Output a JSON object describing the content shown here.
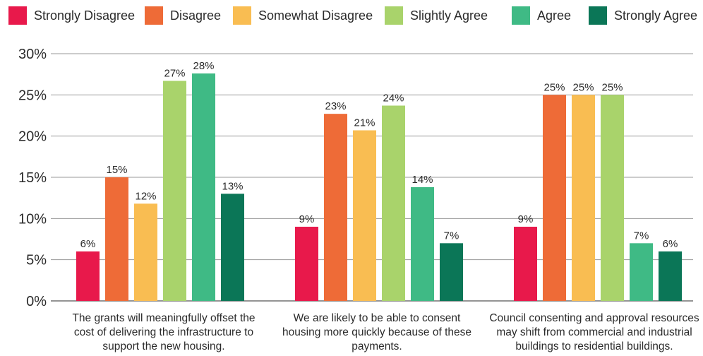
{
  "chart_data": {
    "type": "bar",
    "categories": [
      [
        "The grants will meaningfully offset the",
        "cost of delivering the infrastructure to",
        "support the new housing."
      ],
      [
        "We are likely to be able to consent",
        "housing more quickly because of these",
        "payments."
      ],
      [
        "Council consenting and approval resources",
        "may shift from commercial and industrial",
        "buildings to residential buildings."
      ]
    ],
    "series": [
      {
        "name": "Strongly Disagree",
        "color": "#e8194b",
        "values": [
          6,
          9,
          9
        ],
        "labels": [
          "6%",
          "9%",
          "9%"
        ]
      },
      {
        "name": "Disagree",
        "color": "#ee6b37",
        "values": [
          15,
          22.7,
          25
        ],
        "labels": [
          "15%",
          "23%",
          "25%"
        ]
      },
      {
        "name": "Somewhat Disagree",
        "color": "#f9bd52",
        "values": [
          11.8,
          20.7,
          25
        ],
        "labels": [
          "12%",
          "21%",
          "25%"
        ]
      },
      {
        "name": "Slightly Agree",
        "color": "#a9d36b",
        "values": [
          26.7,
          23.7,
          25
        ],
        "labels": [
          "27%",
          "24%",
          "25%"
        ]
      },
      {
        "name": "Agree",
        "color": "#3fba85",
        "values": [
          27.6,
          13.8,
          7
        ],
        "labels": [
          "28%",
          "14%",
          "7%"
        ]
      },
      {
        "name": "Strongly Agree",
        "color": "#0b7657",
        "values": [
          13,
          7,
          6
        ],
        "labels": [
          "13%",
          "7%",
          "6%"
        ]
      }
    ],
    "y_ticks": [
      0,
      5,
      10,
      15,
      20,
      25,
      30
    ],
    "y_tick_labels": [
      "0%",
      "5%",
      "10%",
      "15%",
      "20%",
      "25%",
      "30%"
    ],
    "ylim": [
      0,
      30
    ],
    "grid": true,
    "legend_position": "top"
  }
}
